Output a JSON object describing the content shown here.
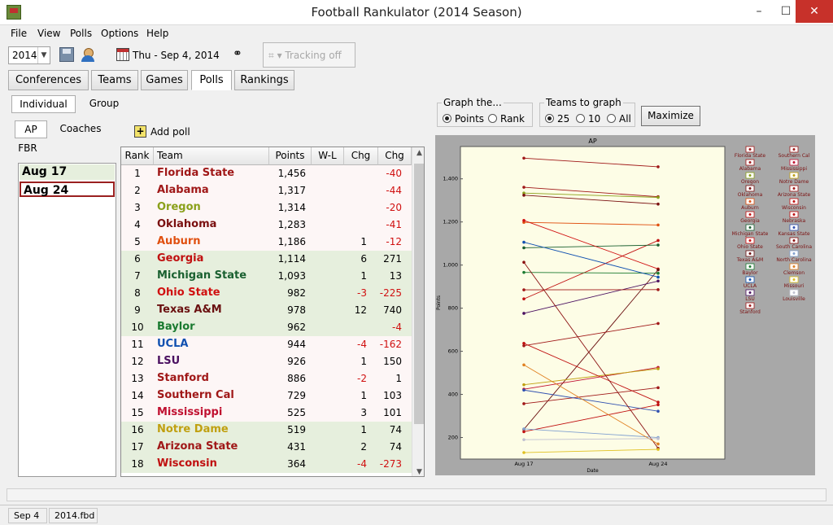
{
  "window": {
    "title": "Football Rankulator  (2014 Season)",
    "min": "–",
    "max": "☐",
    "close": "✕"
  },
  "menu": [
    "File",
    "View",
    "Polls",
    "Options",
    "Help"
  ],
  "toolbar": {
    "year": "2014",
    "date": "Thu - Sep 4, 2014",
    "tracking": "▾ Tracking off"
  },
  "tabs": [
    "Conferences",
    "Teams",
    "Games",
    "Polls",
    "Rankings"
  ],
  "view_tabs": [
    "Individual",
    "Group"
  ],
  "poll_tabs": [
    "AP",
    "Coaches",
    "FBR"
  ],
  "add_poll": "Add poll",
  "dates": [
    "Aug 17",
    "Aug 24"
  ],
  "table": {
    "headers": [
      "Rank",
      "Team",
      "Points",
      "W-L",
      "Chg",
      "Chg"
    ],
    "rows": [
      {
        "rank": "1",
        "team": "Florida State",
        "points": "1,456",
        "chg": "",
        "chg2": "-40",
        "color": "#a01818",
        "bg": "w"
      },
      {
        "rank": "2",
        "team": "Alabama",
        "points": "1,317",
        "chg": "",
        "chg2": "-44",
        "color": "#a01818",
        "bg": "w"
      },
      {
        "rank": "3",
        "team": "Oregon",
        "points": "1,314",
        "chg": "",
        "chg2": "-20",
        "color": "#8aa01a",
        "bg": "w"
      },
      {
        "rank": "4",
        "team": "Oklahoma",
        "points": "1,283",
        "chg": "",
        "chg2": "-41",
        "color": "#7a1010",
        "bg": "w"
      },
      {
        "rank": "5",
        "team": "Auburn",
        "points": "1,186",
        "chg": "1",
        "chg2": "-12",
        "color": "#e05010",
        "bg": "w"
      },
      {
        "rank": "6",
        "team": "Georgia",
        "points": "1,114",
        "chg": "6",
        "chg2": "271",
        "color": "#c01010",
        "bg": "g"
      },
      {
        "rank": "7",
        "team": "Michigan State",
        "points": "1,093",
        "chg": "1",
        "chg2": "13",
        "color": "#1a6030",
        "bg": "g"
      },
      {
        "rank": "8",
        "team": "Ohio State",
        "points": "982",
        "chg": "-3",
        "chg2": "-225",
        "color": "#d01010",
        "bg": "g"
      },
      {
        "rank": "9",
        "team": "Texas A&M",
        "points": "978",
        "chg": "12",
        "chg2": "740",
        "color": "#6a1010",
        "bg": "g"
      },
      {
        "rank": "10",
        "team": "Baylor",
        "points": "962",
        "chg": "",
        "chg2": "-4",
        "color": "#1a7a30",
        "bg": "g"
      },
      {
        "rank": "11",
        "team": "UCLA",
        "points": "944",
        "chg": "-4",
        "chg2": "-162",
        "color": "#1050b0",
        "bg": "w"
      },
      {
        "rank": "12",
        "team": "LSU",
        "points": "926",
        "chg": "1",
        "chg2": "150",
        "color": "#4a1060",
        "bg": "w"
      },
      {
        "rank": "13",
        "team": "Stanford",
        "points": "886",
        "chg": "-2",
        "chg2": "1",
        "color": "#a01818",
        "bg": "w"
      },
      {
        "rank": "14",
        "team": "Southern Cal",
        "points": "729",
        "chg": "1",
        "chg2": "103",
        "color": "#a01818",
        "bg": "w"
      },
      {
        "rank": "15",
        "team": "Mississippi",
        "points": "525",
        "chg": "3",
        "chg2": "101",
        "color": "#c01030",
        "bg": "w"
      },
      {
        "rank": "16",
        "team": "Notre Dame",
        "points": "519",
        "chg": "1",
        "chg2": "74",
        "color": "#c0a010",
        "bg": "g"
      },
      {
        "rank": "17",
        "team": "Arizona State",
        "points": "431",
        "chg": "2",
        "chg2": "74",
        "color": "#a01818",
        "bg": "g"
      },
      {
        "rank": "18",
        "team": "Wisconsin",
        "points": "364",
        "chg": "-4",
        "chg2": "-273",
        "color": "#c01010",
        "bg": "g"
      }
    ]
  },
  "graph_the": {
    "label": "Graph the...",
    "options": [
      "Points",
      "Rank"
    ],
    "selected": "Points"
  },
  "teams_to_graph": {
    "label": "Teams to graph",
    "options": [
      "25",
      "10",
      "All"
    ],
    "selected": "25"
  },
  "maximize": "Maximize",
  "status": {
    "left": "Sep 4",
    "file": "2014.fbd"
  },
  "chart_data": {
    "type": "line",
    "title": "AP",
    "xlabel": "Date",
    "ylabel": "Points",
    "x": [
      "Aug 17",
      "Aug 24"
    ],
    "ylim": [
      100,
      1550
    ],
    "yticks": [
      "200",
      "400",
      "600",
      "800",
      "1,000",
      "1,200",
      "1,400"
    ],
    "legend": [
      "Florida State",
      "Southern Cal",
      "Alabama",
      "Mississippi",
      "Oregon",
      "Notre Dame",
      "Oklahoma",
      "Arizona State",
      "Auburn",
      "Wisconsin",
      "Georgia",
      "Nebraska",
      "Michigan State",
      "Kansas State",
      "Ohio State",
      "South Carolina",
      "Texas A&M",
      "North Carolina",
      "Baylor",
      "Clemson",
      "UCLA",
      "Missouri",
      "LSU",
      "Louisville",
      "Stanford"
    ],
    "series": [
      {
        "name": "Florida State",
        "values": [
          1496,
          1456
        ],
        "color": "#a01818"
      },
      {
        "name": "Alabama",
        "values": [
          1361,
          1317
        ],
        "color": "#a01818"
      },
      {
        "name": "Oregon",
        "values": [
          1334,
          1314
        ],
        "color": "#8aa01a"
      },
      {
        "name": "Oklahoma",
        "values": [
          1324,
          1283
        ],
        "color": "#7a1010"
      },
      {
        "name": "Auburn",
        "values": [
          1198,
          1186
        ],
        "color": "#e05010"
      },
      {
        "name": "Georgia",
        "values": [
          843,
          1114
        ],
        "color": "#c01010"
      },
      {
        "name": "Michigan State",
        "values": [
          1080,
          1093
        ],
        "color": "#1a6030"
      },
      {
        "name": "Ohio State",
        "values": [
          1207,
          982
        ],
        "color": "#d01010"
      },
      {
        "name": "Texas A&M",
        "values": [
          238,
          978
        ],
        "color": "#6a1010"
      },
      {
        "name": "Baylor",
        "values": [
          966,
          962
        ],
        "color": "#1a7a30"
      },
      {
        "name": "UCLA",
        "values": [
          1106,
          944
        ],
        "color": "#1050b0"
      },
      {
        "name": "LSU",
        "values": [
          776,
          926
        ],
        "color": "#4a1060"
      },
      {
        "name": "Stanford",
        "values": [
          885,
          886
        ],
        "color": "#a01818"
      },
      {
        "name": "Southern Cal",
        "values": [
          626,
          729
        ],
        "color": "#a01818"
      },
      {
        "name": "Mississippi",
        "values": [
          424,
          525
        ],
        "color": "#c01030"
      },
      {
        "name": "Notre Dame",
        "values": [
          445,
          519
        ],
        "color": "#c0a010"
      },
      {
        "name": "Arizona State",
        "values": [
          357,
          431
        ],
        "color": "#a01818"
      },
      {
        "name": "Wisconsin",
        "values": [
          637,
          364
        ],
        "color": "#c01010"
      },
      {
        "name": "Nebraska",
        "values": [
          227,
          352
        ],
        "color": "#c01010"
      },
      {
        "name": "Kansas State",
        "values": [
          420,
          322
        ],
        "color": "#3050b0"
      },
      {
        "name": "South Carolina",
        "values": [
          1013,
          150
        ],
        "color": "#8a1010"
      },
      {
        "name": "North Carolina",
        "values": [
          240,
          200
        ],
        "color": "#80a0d0"
      },
      {
        "name": "Clemson",
        "values": [
          537,
          170
        ],
        "color": "#e08020"
      },
      {
        "name": "Missouri",
        "values": [
          130,
          145
        ],
        "color": "#e0c020"
      },
      {
        "name": "Louisville",
        "values": [
          190,
          195
        ],
        "color": "#c0c0d0"
      }
    ]
  }
}
